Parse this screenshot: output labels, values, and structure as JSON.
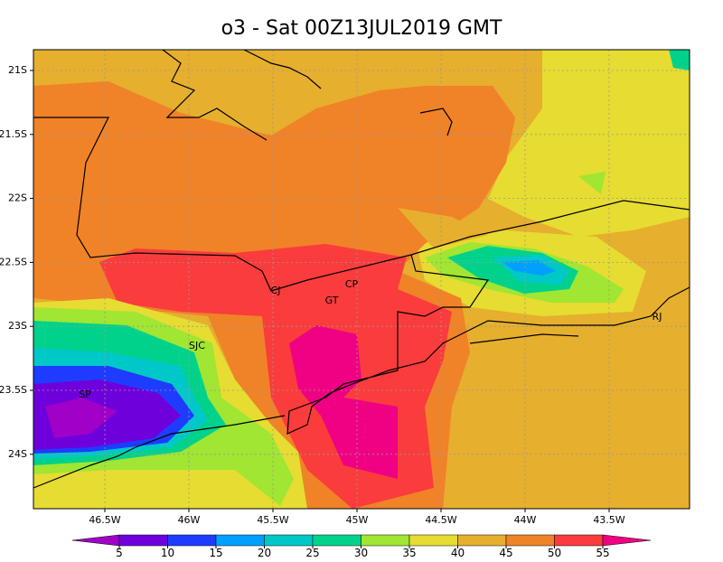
{
  "title": "o3 - Sat 00Z13JUL2019 GMT",
  "map": {
    "lat_labels": [
      "21S",
      "21.5S",
      "22S",
      "22.5S",
      "23S",
      "23.5S",
      "24S"
    ],
    "lon_labels": [
      "46.5W",
      "46W",
      "45.5W",
      "45W",
      "44.5W",
      "44W",
      "43.5W"
    ],
    "places": [
      "SP",
      "SJC",
      "CJ",
      "CP",
      "GT",
      "RJ"
    ]
  },
  "colorbar": {
    "levels": [
      5,
      10,
      15,
      20,
      25,
      30,
      35,
      40,
      45,
      50,
      55
    ],
    "colors": [
      "#a000c8",
      "#6e00dc",
      "#1e3cff",
      "#00a0ff",
      "#00c8c8",
      "#00d28c",
      "#a0e632",
      "#e6dc32",
      "#e6af2d",
      "#f08228",
      "#fa3c3c",
      "#f00082"
    ]
  }
}
